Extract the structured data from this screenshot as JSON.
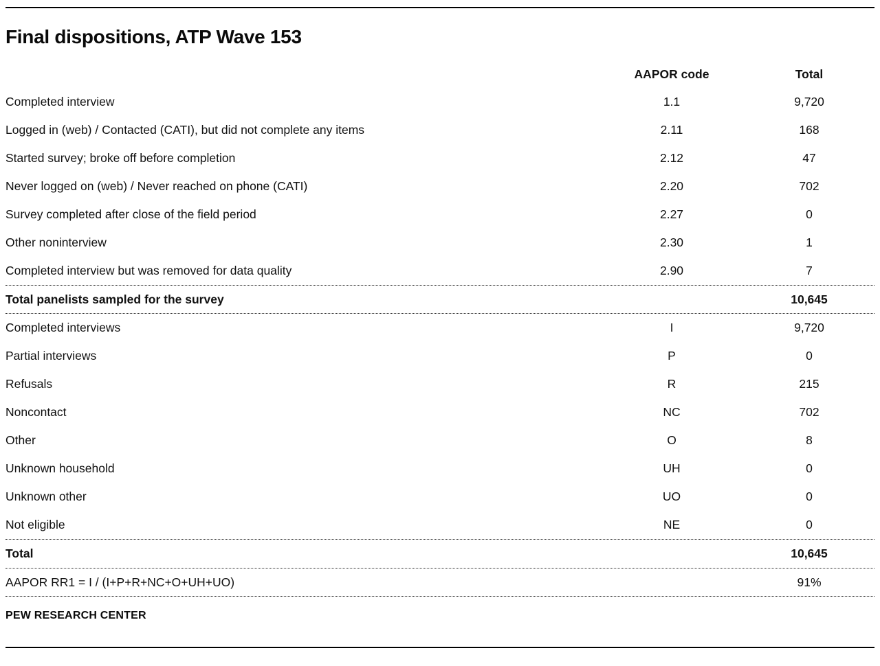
{
  "chart_data": {
    "type": "table",
    "title": "Final dispositions, ATP Wave 153",
    "source": "PEW RESEARCH CENTER",
    "columns": {
      "label": "",
      "code": "AAPOR code",
      "total": "Total"
    },
    "disposition_rows": [
      {
        "label": "Completed interview",
        "code": "1.1",
        "total": "9,720"
      },
      {
        "label": "Logged in (web) / Contacted (CATI), but did not complete any items",
        "code": "2.11",
        "total": "168"
      },
      {
        "label": "Started survey; broke off before completion",
        "code": "2.12",
        "total": "47"
      },
      {
        "label": "Never logged on (web) / Never reached on phone (CATI)",
        "code": "2.20",
        "total": "702"
      },
      {
        "label": "Survey completed after close of the field period",
        "code": "2.27",
        "total": "0"
      },
      {
        "label": "Other noninterview",
        "code": "2.30",
        "total": "1"
      },
      {
        "label": "Completed interview but was removed for data quality",
        "code": "2.90",
        "total": "7"
      }
    ],
    "sampled_total": {
      "label": "Total panelists sampled for the survey",
      "total": "10,645"
    },
    "aapor_rows": [
      {
        "label": "Completed interviews",
        "code": "I",
        "total": "9,720"
      },
      {
        "label": "Partial interviews",
        "code": "P",
        "total": "0"
      },
      {
        "label": "Refusals",
        "code": "R",
        "total": "215"
      },
      {
        "label": "Noncontact",
        "code": "NC",
        "total": "702"
      },
      {
        "label": "Other",
        "code": "O",
        "total": "8"
      },
      {
        "label": "Unknown household",
        "code": "UH",
        "total": "0"
      },
      {
        "label": "Unknown other",
        "code": "UO",
        "total": "0"
      },
      {
        "label": "Not eligible",
        "code": "NE",
        "total": "0"
      }
    ],
    "grand_total": {
      "label": "Total",
      "total": "10,645"
    },
    "response_rate": {
      "label": "AAPOR RR1 = I / (I+P+R+NC+O+UH+UO)",
      "total": "91%"
    }
  }
}
